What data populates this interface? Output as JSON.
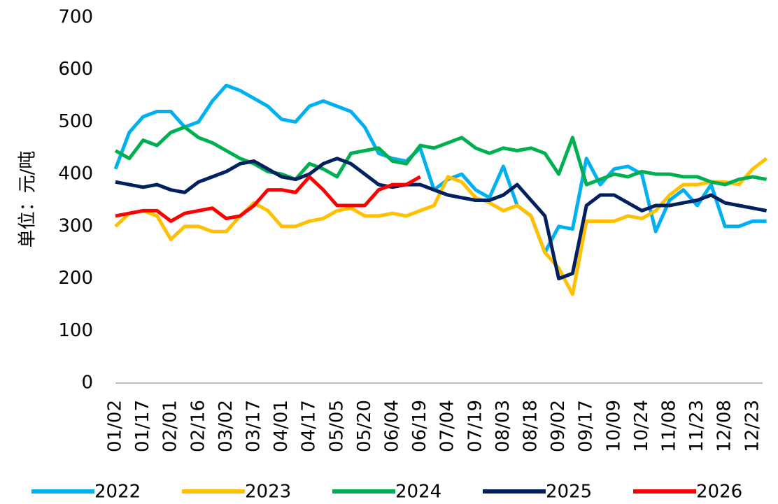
{
  "chart_data": {
    "type": "line",
    "y_label": "单位：元/吨",
    "categories": [
      "01/02",
      null,
      "01/17",
      null,
      "02/01",
      null,
      "02/16",
      null,
      "03/02",
      null,
      "03/17",
      null,
      "04/01",
      null,
      "04/17",
      null,
      "05/05",
      null,
      "05/20",
      null,
      "06/04",
      null,
      "06/19",
      null,
      "07/04",
      null,
      "07/19",
      null,
      "08/03",
      null,
      "08/18",
      null,
      "09/02",
      null,
      "09/17",
      null,
      "10/09",
      null,
      "10/24",
      null,
      "11/08",
      null,
      "11/23",
      null,
      "12/08",
      null,
      "12/23",
      null
    ],
    "ylim": [
      0,
      700
    ],
    "yticks": [
      0,
      100,
      200,
      300,
      400,
      500,
      600,
      700
    ],
    "grid": false,
    "legend": "bottom",
    "series": [
      {
        "name": "2022",
        "color": "#00b0f0",
        "values": [
          410,
          480,
          510,
          520,
          520,
          490,
          500,
          540,
          570,
          560,
          545,
          530,
          505,
          500,
          530,
          540,
          530,
          520,
          490,
          440,
          430,
          425,
          450,
          370,
          390,
          400,
          370,
          355,
          415,
          340,
          320,
          250,
          300,
          295,
          430,
          380,
          410,
          415,
          400,
          290,
          350,
          370,
          340,
          380,
          300,
          300,
          310,
          310
        ]
      },
      {
        "name": "2023",
        "color": "#ffc000",
        "values": [
          300,
          325,
          330,
          320,
          275,
          300,
          300,
          290,
          290,
          320,
          345,
          330,
          300,
          300,
          310,
          315,
          330,
          335,
          320,
          320,
          325,
          320,
          330,
          340,
          395,
          385,
          355,
          345,
          330,
          340,
          320,
          250,
          220,
          170,
          310,
          310,
          310,
          320,
          315,
          330,
          360,
          380,
          380,
          385,
          385,
          380,
          410,
          430
        ]
      },
      {
        "name": "2024",
        "color": "#00b050",
        "values": [
          445,
          430,
          465,
          455,
          480,
          490,
          470,
          460,
          445,
          430,
          420,
          405,
          400,
          390,
          420,
          410,
          395,
          440,
          445,
          450,
          425,
          420,
          455,
          450,
          460,
          470,
          450,
          440,
          450,
          445,
          450,
          440,
          400,
          470,
          380,
          390,
          400,
          395,
          405,
          400,
          400,
          395,
          395,
          385,
          380,
          390,
          395,
          390
        ]
      },
      {
        "name": "2025",
        "color": "#002060",
        "values": [
          385,
          380,
          375,
          380,
          370,
          365,
          385,
          395,
          405,
          420,
          425,
          410,
          395,
          390,
          400,
          420,
          430,
          420,
          400,
          380,
          375,
          380,
          380,
          370,
          360,
          355,
          350,
          350,
          360,
          380,
          350,
          320,
          200,
          210,
          340,
          360,
          360,
          345,
          330,
          340,
          340,
          345,
          350,
          360,
          345,
          340,
          335,
          330
        ]
      },
      {
        "name": "2026",
        "color": "#ff0000",
        "values": [
          320,
          325,
          330,
          330,
          310,
          325,
          330,
          335,
          315,
          320,
          340,
          370,
          370,
          365,
          395,
          370,
          340,
          340,
          340,
          370,
          380,
          380,
          395,
          null,
          null,
          null,
          null,
          null,
          null,
          null,
          null,
          null,
          null,
          null,
          null,
          null,
          null,
          null,
          null,
          null,
          null,
          null,
          null,
          null,
          null,
          null,
          null,
          null
        ]
      }
    ]
  }
}
